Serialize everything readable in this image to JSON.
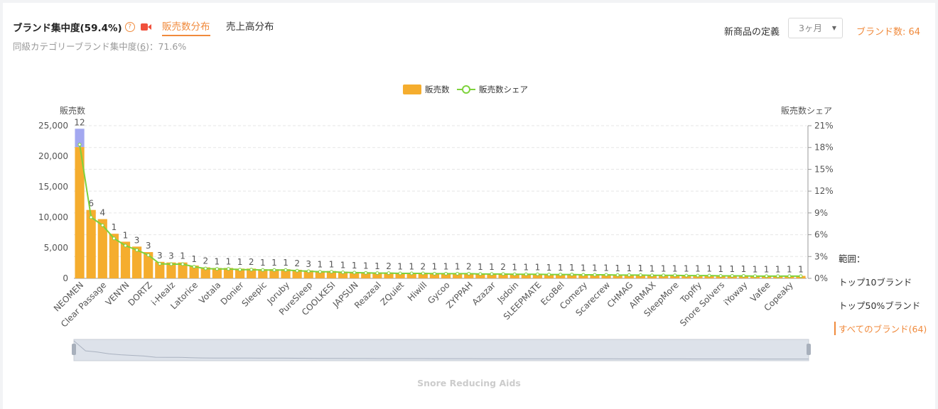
{
  "header": {
    "title": "ブランド集中度(59.4%)",
    "tabs": [
      {
        "label": "販売数分布",
        "active": true
      },
      {
        "label": "売上高分布",
        "active": false
      }
    ],
    "sub_prefix": "同級カテゴリーブランド集中度(",
    "sub_link": "6",
    "sub_suffix": ")：",
    "sub_value": "71.6%",
    "definition_label": "新商品の定義",
    "definition_value": "3ヶ月",
    "brand_count_label": "ブランド数: 64"
  },
  "range": {
    "title": "範囲：",
    "options": [
      "トップ10ブランド",
      "トップ50%ブランド",
      "すべてのブランド(64)"
    ],
    "active_index": 2
  },
  "footer": {
    "label": "Snore Reducing Aids"
  },
  "chart_data": {
    "type": "bar",
    "legend": [
      {
        "name": "販売数",
        "color": "#f5ad2e"
      },
      {
        "name": "販売数シェア",
        "color": "#7ed23c"
      }
    ],
    "ylabel_left": "販売数",
    "ylabel_right": "販売数シェア",
    "ylim_left": [
      0,
      25000
    ],
    "ylim_right": [
      0,
      21
    ],
    "yticks_left": [
      "0",
      "5,000",
      "10,000",
      "15,000",
      "20,000",
      "25,000"
    ],
    "yticks_right": [
      "0%",
      "3%",
      "6%",
      "9%",
      "12%",
      "15%",
      "18%",
      "21%"
    ],
    "x_tick_labels": [
      "NEOMEN",
      "Clear Passage",
      "VENYN",
      "DORTZ",
      "i-Healz",
      "Latorice",
      "Votala",
      "Donier",
      "Sleepic",
      "Joruby",
      "PureSleep",
      "COOLKESI",
      "JAPSUN",
      "Reazeal",
      "ZQuiet",
      "Hiwill",
      "Gycoo",
      "ZYPPAH",
      "Azazar",
      "Jsdoin",
      "SLEEPMATE",
      "EcoBel",
      "Comezy",
      "Scarecrew",
      "CHMAG",
      "AIRMAX",
      "SleepMore",
      "Topffy",
      "Snore Solvers",
      "iYoway",
      "Vafee",
      "Copeaky"
    ],
    "categories": [
      "NEOMEN",
      "",
      "Clear Passage",
      "",
      "VENYN",
      "",
      "DORTZ",
      "",
      "i-Healz",
      "",
      "Latorice",
      "",
      "Votala",
      "",
      "Donier",
      "",
      "Sleepic",
      "",
      "Joruby",
      "",
      "PureSleep",
      "",
      "COOLKESI",
      "",
      "JAPSUN",
      "",
      "Reazeal",
      "",
      "ZQuiet",
      "",
      "Hiwill",
      "",
      "Gycoo",
      "",
      "ZYPPAH",
      "",
      "Azazar",
      "",
      "Jsdoin",
      "",
      "SLEEPMATE",
      "",
      "EcoBel",
      "",
      "Comezy",
      "",
      "Scarecrew",
      "",
      "CHMAG",
      "",
      "AIRMAX",
      "",
      "SleepMore",
      "",
      "Topffy",
      "",
      "Snore Solvers",
      "",
      "iYoway",
      "",
      "Vafee",
      "",
      "Copeaky",
      ""
    ],
    "series": [
      {
        "name": "販売数",
        "values": [
          24500,
          11200,
          9700,
          7300,
          6000,
          5200,
          4300,
          2700,
          2600,
          2600,
          2100,
          1800,
          1700,
          1700,
          1600,
          1600,
          1500,
          1500,
          1500,
          1400,
          1300,
          1200,
          1200,
          1100,
          1050,
          1000,
          950,
          950,
          900,
          900,
          900,
          850,
          850,
          850,
          850,
          800,
          800,
          800,
          750,
          750,
          750,
          700,
          700,
          700,
          650,
          650,
          650,
          600,
          600,
          600,
          550,
          550,
          550,
          500,
          500,
          500,
          450,
          450,
          450,
          400,
          400,
          400,
          400,
          400
        ]
      },
      {
        "name": "販売数シェア",
        "values": [
          18.4,
          8.4,
          7.3,
          5.5,
          4.5,
          3.9,
          3.2,
          2.0,
          1.95,
          1.95,
          1.6,
          1.35,
          1.3,
          1.3,
          1.2,
          1.2,
          1.15,
          1.15,
          1.15,
          1.05,
          0.98,
          0.9,
          0.9,
          0.83,
          0.79,
          0.75,
          0.72,
          0.72,
          0.68,
          0.68,
          0.68,
          0.64,
          0.64,
          0.64,
          0.64,
          0.6,
          0.6,
          0.6,
          0.56,
          0.56,
          0.56,
          0.53,
          0.53,
          0.53,
          0.49,
          0.49,
          0.49,
          0.45,
          0.45,
          0.45,
          0.41,
          0.41,
          0.41,
          0.38,
          0.38,
          0.38,
          0.34,
          0.34,
          0.34,
          0.3,
          0.3,
          0.3,
          0.3,
          0.3
        ]
      }
    ],
    "new_products": [
      3000,
      0,
      0,
      0,
      0,
      0,
      0,
      0,
      0,
      0,
      0,
      0,
      0,
      0,
      0,
      0,
      0,
      0,
      0,
      0,
      0,
      0,
      0,
      0,
      0,
      0,
      0,
      0,
      0,
      0,
      0,
      0,
      0,
      0,
      0,
      0,
      0,
      0,
      0,
      0,
      0,
      0,
      0,
      0,
      0,
      0,
      0,
      0,
      0,
      0,
      0,
      0,
      0,
      0,
      0,
      0,
      0,
      0,
      0,
      0,
      0,
      0,
      0,
      0
    ],
    "counts": [
      "12",
      "6",
      "4",
      "1",
      "1",
      "3",
      "3",
      "3",
      "3",
      "1",
      "1",
      "2",
      "1",
      "1",
      "1",
      "2",
      "1",
      "1",
      "1",
      "2",
      "3",
      "1",
      "1",
      "1",
      "1",
      "1",
      "1",
      "2",
      "1",
      "1",
      "2",
      "1",
      "1",
      "1",
      "2",
      "1",
      "1",
      "2",
      "1",
      "1",
      "1",
      "1",
      "1",
      "1",
      "1",
      "1",
      "1",
      "1",
      "1",
      "1",
      "1",
      "1",
      "1",
      "1",
      "1",
      "1",
      "1",
      "1",
      "1",
      "1",
      "1",
      "1",
      "1",
      "1"
    ],
    "colors": {
      "bar": "#f5ad2e",
      "new_bar": "#a3a8f0",
      "line": "#7ed23c",
      "grid": "#e5e5e5"
    }
  }
}
